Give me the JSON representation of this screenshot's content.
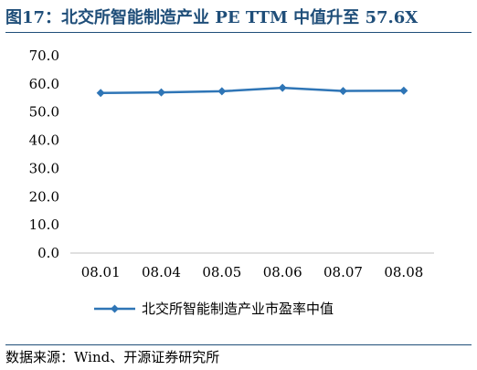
{
  "header": {
    "figure_title": "图17：北交所智能制造产业 PE TTM 中值升至 57.6X"
  },
  "footer": {
    "source": "数据来源：Wind、开源证券研究所"
  },
  "colors": {
    "title": "#1f4e79",
    "series": "#2e75b6",
    "axis": "#bfbfbf"
  },
  "chart_data": {
    "type": "line",
    "categories": [
      "08.01",
      "08.04",
      "08.05",
      "08.06",
      "08.07",
      "08.08"
    ],
    "series": [
      {
        "name": "北交所智能制造产业市盈率中值",
        "values": [
          56.8,
          57.0,
          57.4,
          58.6,
          57.5,
          57.6
        ],
        "marker": "diamond"
      }
    ],
    "ylim": [
      0,
      70
    ],
    "yticks": [
      "0.0",
      "10.0",
      "20.0",
      "30.0",
      "40.0",
      "50.0",
      "60.0",
      "70.0"
    ],
    "ytick_values": [
      0,
      10,
      20,
      30,
      40,
      50,
      60,
      70
    ],
    "grid": false,
    "legend_position": "bottom"
  }
}
